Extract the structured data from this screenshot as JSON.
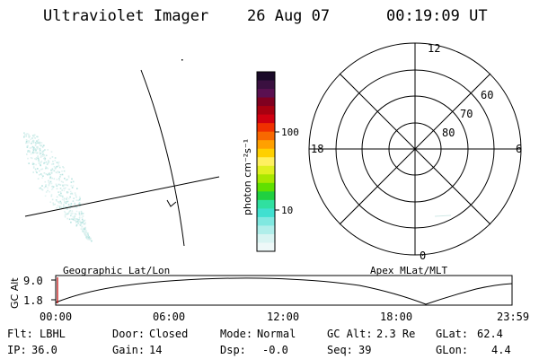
{
  "header": {
    "instrument": "Ultraviolet Imager",
    "date": "26 Aug 07",
    "time": "00:19:09 UT"
  },
  "colorbar": {
    "unit_label": "photon cm⁻²s⁻¹",
    "ticks": [
      "100",
      "10"
    ],
    "colors": [
      "#1a0a28",
      "#3a1040",
      "#5a1050",
      "#800020",
      "#a80010",
      "#d00010",
      "#f03000",
      "#f86800",
      "#ffa000",
      "#ffd000",
      "#fff060",
      "#e0f020",
      "#a8e800",
      "#60e000",
      "#20d040",
      "#30e0a0",
      "#40e0d0",
      "#80e8e0",
      "#b0eeea",
      "#d8f4f2",
      "#eef8f8"
    ]
  },
  "polar": {
    "mlt_labels": {
      "top": "12",
      "left": "18",
      "right": "6",
      "bottom": "0"
    },
    "lat_labels": [
      "60",
      "70",
      "80"
    ]
  },
  "geo_panel": {
    "title": "Geographic Lat/Lon"
  },
  "apex_panel": {
    "title": "Apex MLat/MLT"
  },
  "altitude_plot": {
    "ylabel": "GC Alt",
    "yticks": [
      "9.0",
      "1.8"
    ],
    "xticks": [
      "00:00",
      "06:00",
      "12:00",
      "18:00",
      "23:59"
    ]
  },
  "status": {
    "row1": [
      {
        "key": "Flt:",
        "value": "LBHL"
      },
      {
        "key": "Door:",
        "value": "Closed"
      },
      {
        "key": "Mode:",
        "value": "Normal"
      },
      {
        "key": "GC Alt:",
        "value": "2.3 Re"
      },
      {
        "key": "GLat:",
        "value": "62.4"
      }
    ],
    "row2": [
      {
        "key": "IP:",
        "value": "36.0"
      },
      {
        "key": "Gain:",
        "value": "14"
      },
      {
        "key": "Dsp:",
        "value": "-0.0"
      },
      {
        "key": "Seq:",
        "value": "39"
      },
      {
        "key": "GLon:",
        "value": "4.4"
      }
    ]
  }
}
